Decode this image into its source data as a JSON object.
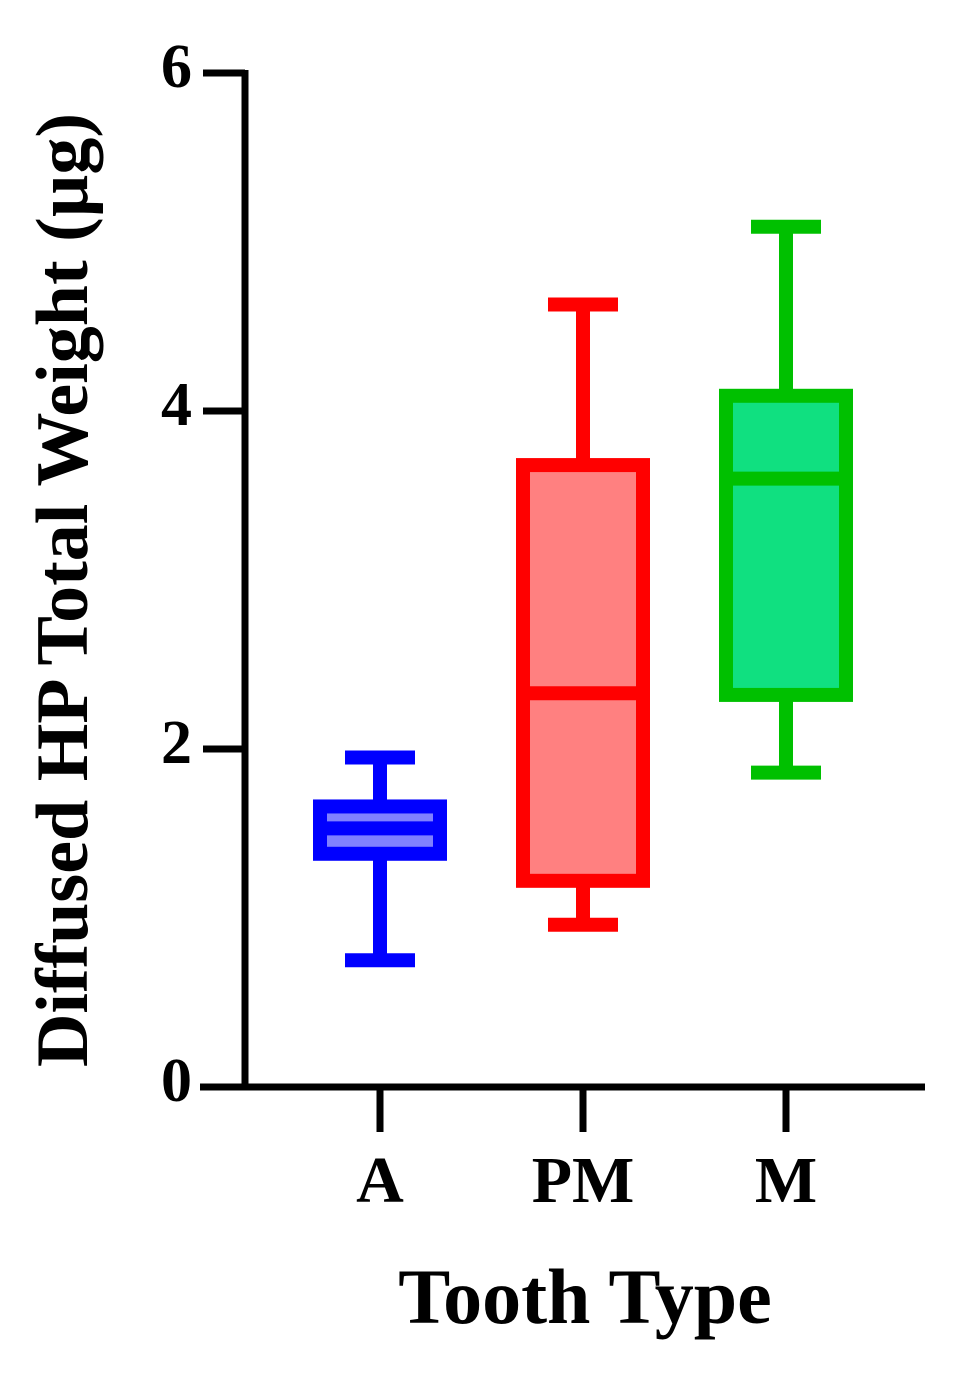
{
  "chart_data": {
    "type": "box",
    "xlabel": "Tooth Type",
    "ylabel": "Diffused HP Total Weight (µg)",
    "categories": [
      "A",
      "PM",
      "M"
    ],
    "boxes": [
      {
        "min": 0.75,
        "q1": 1.38,
        "median": 1.53,
        "q3": 1.66,
        "max": 1.95
      },
      {
        "min": 0.96,
        "q1": 1.22,
        "median": 2.33,
        "q3": 3.68,
        "max": 4.63
      },
      {
        "min": 1.86,
        "q1": 2.32,
        "median": 3.6,
        "q3": 4.09,
        "max": 5.09
      }
    ],
    "colors": [
      "#0000ff",
      "#ff0000",
      "#00c000"
    ],
    "fills": [
      "#8080ff",
      "#ff8080",
      "#10e080"
    ],
    "ylim": [
      0,
      6
    ],
    "yticks": [
      0,
      2,
      4,
      6
    ],
    "grid": false
  }
}
